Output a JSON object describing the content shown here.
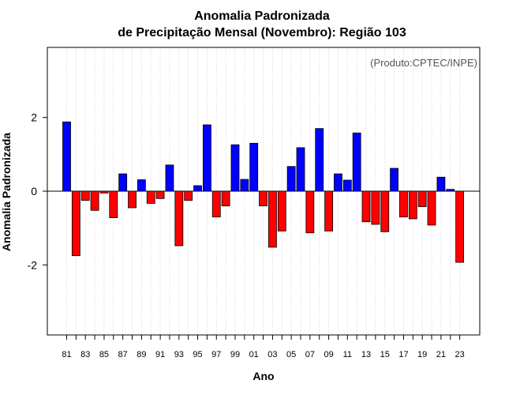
{
  "chart_data": {
    "type": "bar",
    "title_line1": "Anomalia Padronizada",
    "title_line2": "de Precipitação Mensal (Novembro): Região 103",
    "xlabel": "Ano",
    "ylabel": "Anomalia Padronizada",
    "credit": "(Produto:CPTEC/INPE)",
    "ylim": [
      -3.9,
      3.9
    ],
    "yticks": [
      -2,
      0,
      2
    ],
    "ytick_labels": [
      "-2",
      "0",
      "2"
    ],
    "grid": true,
    "positive_color": "#0000ff",
    "negative_color": "#ff0000",
    "categories": [
      "81",
      "82",
      "83",
      "84",
      "85",
      "86",
      "87",
      "88",
      "89",
      "90",
      "91",
      "92",
      "93",
      "94",
      "95",
      "96",
      "97",
      "98",
      "99",
      "00",
      "01",
      "02",
      "03",
      "04",
      "05",
      "06",
      "07",
      "08",
      "09",
      "10",
      "11",
      "12",
      "13",
      "14",
      "15",
      "16",
      "17",
      "18",
      "19",
      "20",
      "21",
      "22",
      "23"
    ],
    "tick_labels": [
      "81",
      "83",
      "85",
      "87",
      "89",
      "91",
      "93",
      "95",
      "97",
      "99",
      "01",
      "03",
      "05",
      "07",
      "09",
      "11",
      "13",
      "15",
      "17",
      "19",
      "21",
      "23"
    ],
    "values": [
      1.88,
      -1.75,
      -0.25,
      -0.52,
      -0.05,
      -0.72,
      0.47,
      -0.45,
      0.31,
      -0.33,
      -0.2,
      0.71,
      -1.48,
      -0.25,
      0.15,
      1.8,
      -0.7,
      -0.4,
      1.26,
      0.32,
      1.3,
      -0.4,
      -1.52,
      -1.08,
      0.67,
      1.18,
      -1.13,
      1.7,
      -1.08,
      0.47,
      0.3,
      1.58,
      -0.83,
      -0.9,
      -1.1,
      0.62,
      -0.7,
      -0.75,
      -0.42,
      -0.92,
      0.38,
      0.05,
      -1.93
    ]
  }
}
